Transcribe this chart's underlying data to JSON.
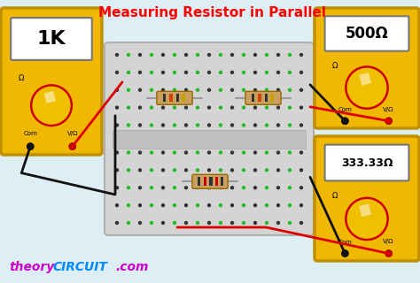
{
  "title": "Measuring Resistor in Parallel",
  "title_color": "#ff0000",
  "title_fontsize": 11,
  "bg_color": "#ddeef5",
  "watermark_theory": "theory",
  "watermark_circuit": "CIRCUIT",
  "watermark_com": ".com",
  "watermark_color_theory": "#cc00cc",
  "watermark_color_circuit": "#0088ff",
  "meter1_label": "1K",
  "meter2_label": "500Ω",
  "meter3_label": "333.33Ω",
  "meter_bg": "#f0b800",
  "meter_border": "#c09000",
  "breadboard_bg": "#d4d4d4",
  "dot_color_dark": "#333333",
  "dot_color_green": "#22bb22",
  "dot_color_red": "#cc0000",
  "resistor_body": "#c8a060",
  "resistor_lead": "#aaaaaa",
  "wire_red": "#dd0000",
  "wire_black": "#111111"
}
